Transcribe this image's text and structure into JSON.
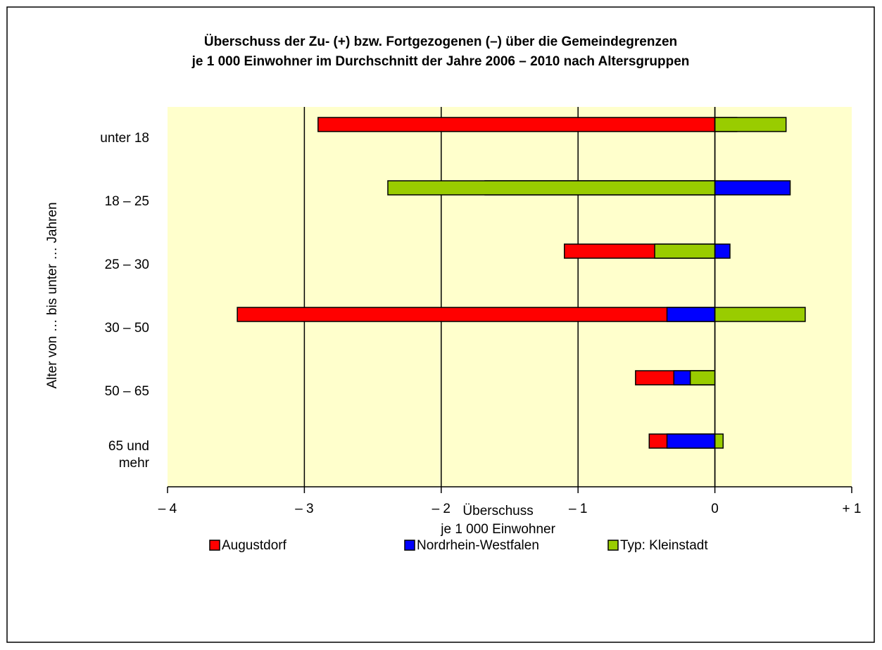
{
  "chart_data": {
    "type": "bar",
    "orientation": "horizontal",
    "title": "Überschuss der Zu- (+) bzw. Fortgezogenen (–) über die Gemeindegrenzen\nje 1 000 Einwohner im Durchschnitt der Jahre 2006 – 2010 nach Altersgruppen",
    "x_label": "Überschuss\nje 1 000 Einwohner",
    "y_label": "Alter von … bis unter … Jahren",
    "categories": [
      "unter 18",
      "18 – 25",
      "25 – 30",
      "30 – 50",
      "50 – 65",
      "65 und\nmehr"
    ],
    "series": [
      {
        "name": "Augustdorf",
        "color": "#ff0000",
        "values": [
          -2.9,
          -1.68,
          -1.1,
          -3.49,
          -0.58,
          -0.48
        ]
      },
      {
        "name": "Nordrhein-Westfalen",
        "color": "#0000ff",
        "values": [
          0.16,
          0.55,
          0.11,
          -0.35,
          -0.3,
          -0.35
        ]
      },
      {
        "name": "Typ: Kleinstadt",
        "color": "#99cc00",
        "values": [
          0.52,
          -2.39,
          -0.44,
          0.66,
          -0.18,
          0.06
        ]
      }
    ],
    "xlim": [
      -4,
      1
    ],
    "xticks": [
      {
        "value": -4,
        "label": "– 4"
      },
      {
        "value": -3,
        "label": "– 3"
      },
      {
        "value": -2,
        "label": "– 2"
      },
      {
        "value": -1,
        "label": "– 1"
      },
      0,
      {
        "value": 1,
        "label": "+ 1"
      }
    ],
    "grid": true,
    "plot_background": "#ffffcc",
    "legend": "bottom"
  }
}
